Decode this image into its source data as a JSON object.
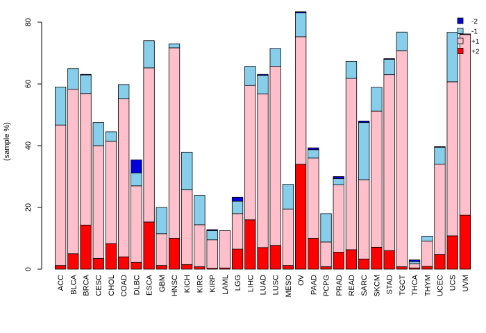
{
  "chart_data": {
    "type": "bar",
    "stacked": true,
    "title": "",
    "xlabel": "",
    "ylabel": "(sample %)",
    "ylim": [
      0,
      80
    ],
    "yticks": [
      0,
      20,
      40,
      60,
      80
    ],
    "legend_position": "top-right",
    "categories": [
      "ACC",
      "BLCA",
      "BRCA",
      "CESC",
      "CHOL",
      "COAD",
      "DLBC",
      "ESCA",
      "GBM",
      "HNSC",
      "KICH",
      "KIRC",
      "KIRP",
      "LAML",
      "LGG",
      "LIHC",
      "LUAD",
      "LUSC",
      "MESO",
      "OV",
      "PAAD",
      "PCPG",
      "PRAD",
      "READ",
      "SARC",
      "SKCM",
      "STAD",
      "TGCT",
      "THCA",
      "THYM",
      "UCEC",
      "UCS",
      "UVM"
    ],
    "series": [
      {
        "name": "+2",
        "color": "#ff0000",
        "values": [
          1.2,
          5.0,
          14.3,
          3.5,
          8.3,
          4.0,
          2.2,
          15.3,
          1.2,
          10.0,
          1.5,
          0.8,
          0.3,
          0.4,
          6.5,
          16.0,
          7.0,
          7.7,
          1.2,
          34.0,
          10.0,
          0.8,
          5.5,
          6.3,
          3.3,
          7.1,
          6.0,
          0.8,
          0.4,
          0.9,
          4.8,
          10.8,
          17.5
        ]
      },
      {
        "name": "+1",
        "color": "#ffc0cb",
        "values": [
          45.5,
          53.3,
          42.6,
          36.5,
          33.2,
          51.2,
          24.8,
          49.9,
          10.3,
          61.7,
          24.2,
          13.6,
          9.2,
          12.1,
          11.5,
          43.5,
          49.8,
          58.0,
          18.3,
          41.3,
          26.0,
          8.0,
          21.8,
          55.5,
          25.7,
          44.1,
          57.0,
          70.0,
          1.4,
          8.2,
          29.2,
          49.9,
          58.5
        ]
      },
      {
        "name": "-1",
        "color": "#87ceeb",
        "values": [
          12.3,
          6.7,
          6.0,
          7.5,
          3.0,
          4.6,
          4.2,
          8.8,
          8.5,
          1.3,
          12.2,
          9.5,
          3.0,
          0.0,
          4.0,
          6.2,
          6.0,
          5.8,
          8.0,
          7.7,
          2.7,
          9.2,
          2.0,
          5.5,
          18.5,
          7.7,
          5.0,
          6.0,
          0.7,
          1.6,
          5.5,
          16.0,
          0.2
        ]
      },
      {
        "name": "-2",
        "color": "#0000dd",
        "values": [
          0,
          0,
          0.2,
          0,
          0,
          0,
          4.2,
          0,
          0,
          0,
          0,
          0,
          0.3,
          0,
          1.3,
          0,
          0.3,
          0,
          0,
          0.4,
          0.6,
          0,
          0.7,
          0,
          0.5,
          0,
          0.2,
          0,
          0.5,
          0,
          0.2,
          0,
          0
        ]
      }
    ],
    "legend_order": [
      "-2",
      "-1",
      "+1",
      "+2"
    ]
  }
}
